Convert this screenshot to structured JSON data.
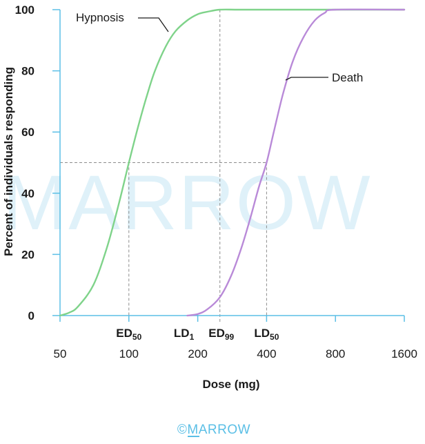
{
  "chart_data": {
    "type": "line",
    "xlabel": "Dose (mg)",
    "ylabel": "Percent of individuals responding",
    "x_scale": "log",
    "xlim": [
      50,
      1600
    ],
    "ylim": [
      0,
      100
    ],
    "x_ticks": [
      50,
      100,
      200,
      400,
      800,
      1600
    ],
    "y_ticks": [
      0,
      20,
      40,
      60,
      80,
      100
    ],
    "grid": false,
    "series": [
      {
        "name": "Hypnosis",
        "color": "#7fd38a",
        "x": [
          50,
          55,
          60,
          70,
          80,
          90,
          100,
          110,
          120,
          130,
          145,
          160,
          180,
          200,
          220,
          250,
          300,
          400,
          800,
          1600
        ],
        "y": [
          0,
          1,
          3,
          10,
          22,
          36,
          50,
          62,
          72,
          80,
          88,
          93,
          96.5,
          98.5,
          99.3,
          100,
          100,
          100,
          100,
          100
        ]
      },
      {
        "name": "Death",
        "color": "#b98ad8",
        "x": [
          180,
          200,
          220,
          250,
          280,
          310,
          340,
          370,
          400,
          430,
          470,
          520,
          580,
          650,
          720,
          800,
          1600
        ],
        "y": [
          0,
          0.5,
          2,
          6,
          13,
          22,
          32,
          42,
          50,
          60,
          72,
          83,
          91,
          96.5,
          99,
          100,
          100
        ]
      }
    ],
    "reference_lines": [
      {
        "label": "ED50",
        "x": 100,
        "y": 50
      },
      {
        "label": "LD1",
        "x": 200,
        "y": 1
      },
      {
        "label": "ED99",
        "x": 250,
        "y": 99
      },
      {
        "label": "LD50",
        "x": 400,
        "y": 50
      }
    ],
    "annotations": [
      {
        "label_main": "ED",
        "label_sub": "50"
      },
      {
        "label_main": "LD",
        "label_sub": "1"
      },
      {
        "label_main": "ED",
        "label_sub": "99"
      },
      {
        "label_main": "LD",
        "label_sub": "50"
      }
    ],
    "series_labels": {
      "hypnosis": "Hypnosis",
      "death": "Death"
    },
    "colors": {
      "axis": "#5bbfe6",
      "hypnosis": "#7fd38a",
      "death": "#b98ad8",
      "guide": "#8c8c8c"
    }
  },
  "watermark": "MARROW",
  "copyright": "©MARROW"
}
